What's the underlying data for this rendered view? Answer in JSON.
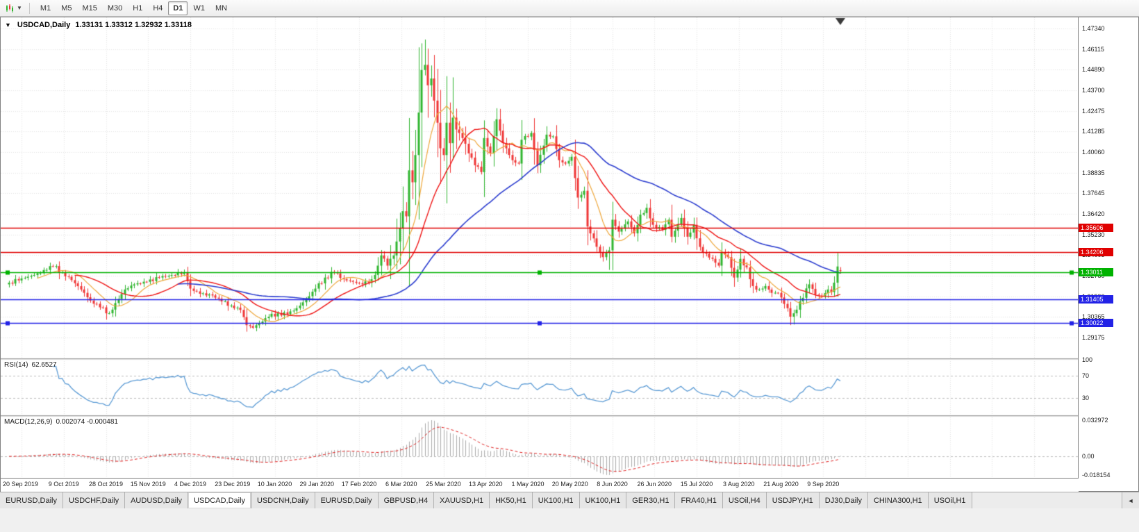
{
  "toolbar": {
    "dropdown_caret": "▼",
    "timeframes": [
      {
        "label": "M1",
        "active": false
      },
      {
        "label": "M5",
        "active": false
      },
      {
        "label": "M15",
        "active": false
      },
      {
        "label": "M30",
        "active": false
      },
      {
        "label": "H1",
        "active": false
      },
      {
        "label": "H4",
        "active": false
      },
      {
        "label": "D1",
        "active": true
      },
      {
        "label": "W1",
        "active": false
      },
      {
        "label": "MN",
        "active": false
      }
    ]
  },
  "chart_header": {
    "collapse_icon": "▼",
    "title": "USDCAD,Daily",
    "ohlc": "1.33131 1.33312 1.32932 1.33118"
  },
  "panels": {
    "rsi": {
      "name": "RSI(14)",
      "value": "62.6527"
    },
    "macd": {
      "name": "MACD(12,26,9)",
      "values": "0.002074 -0.000481"
    }
  },
  "chart_data": {
    "type": "candlestick",
    "symbol": "USDCAD",
    "period": "Daily",
    "current_bar": {
      "open": 1.33131,
      "high": 1.33312,
      "low": 1.32932,
      "close": 1.33118
    },
    "y_labels": [
      "1.47340",
      "1.46115",
      "1.44890",
      "1.43700",
      "1.42475",
      "1.41285",
      "1.40060",
      "1.38835",
      "1.37645",
      "1.36420",
      "1.35230",
      "1.34005",
      "1.32780",
      "1.31590",
      "1.30365",
      "1.29175"
    ],
    "ylim": [
      1.29175,
      1.4734
    ],
    "x_labels": [
      "20 Sep 2019",
      "9 Oct 2019",
      "28 Oct 2019",
      "15 Nov 2019",
      "4 Dec 2019",
      "23 Dec 2019",
      "10 Jan 2020",
      "29 Jan 2020",
      "17 Feb 2020",
      "6 Mar 2020",
      "25 Mar 2020",
      "13 Apr 2020",
      "1 May 2020",
      "20 May 2020",
      "8 Jun 2020",
      "26 Jun 2020",
      "15 Jul 2020",
      "3 Aug 2020",
      "21 Aug 2020",
      "9 Sep 2020"
    ],
    "bars": 267,
    "up_color": "#2FB52F",
    "down_color": "#F03535",
    "close_anchors": [
      [
        0,
        1.324
      ],
      [
        4,
        1.3265
      ],
      [
        8,
        1.3285
      ],
      [
        12,
        1.3315
      ],
      [
        14,
        1.3335
      ],
      [
        17,
        1.33
      ],
      [
        20,
        1.3255
      ],
      [
        23,
        1.32
      ],
      [
        26,
        1.3135
      ],
      [
        29,
        1.3095
      ],
      [
        32,
        1.306
      ],
      [
        34,
        1.312
      ],
      [
        37,
        1.32
      ],
      [
        40,
        1.323
      ],
      [
        44,
        1.3245
      ],
      [
        48,
        1.327
      ],
      [
        52,
        1.3285
      ],
      [
        56,
        1.33
      ],
      [
        58,
        1.3205
      ],
      [
        61,
        1.3175
      ],
      [
        65,
        1.3165
      ],
      [
        68,
        1.313
      ],
      [
        71,
        1.3105
      ],
      [
        74,
        1.308
      ],
      [
        76,
        1.299
      ],
      [
        78,
        1.2975
      ],
      [
        80,
        1.3
      ],
      [
        83,
        1.304
      ],
      [
        86,
        1.306
      ],
      [
        89,
        1.3055
      ],
      [
        92,
        1.309
      ],
      [
        95,
        1.314
      ],
      [
        98,
        1.3205
      ],
      [
        101,
        1.327
      ],
      [
        104,
        1.33
      ],
      [
        107,
        1.326
      ],
      [
        110,
        1.3245
      ],
      [
        113,
        1.323
      ],
      [
        116,
        1.326
      ],
      [
        118,
        1.334
      ],
      [
        119,
        1.34
      ],
      [
        121,
        1.334
      ],
      [
        123,
        1.34
      ],
      [
        125,
        1.356
      ],
      [
        126,
        1.366
      ],
      [
        127,
        1.363
      ],
      [
        128,
        1.39
      ],
      [
        129,
        1.383
      ],
      [
        130,
        1.399
      ],
      [
        131,
        1.424
      ],
      [
        132,
        1.449
      ],
      [
        133,
        1.452
      ],
      [
        134,
        1.44
      ],
      [
        135,
        1.444
      ],
      [
        136,
        1.431
      ],
      [
        137,
        1.418
      ],
      [
        138,
        1.403
      ],
      [
        139,
        1.399
      ],
      [
        140,
        1.418
      ],
      [
        141,
        1.406
      ],
      [
        142,
        1.421
      ],
      [
        143,
        1.414
      ],
      [
        145,
        1.409
      ],
      [
        147,
        1.4
      ],
      [
        149,
        1.393
      ],
      [
        151,
        1.389
      ],
      [
        152,
        1.409
      ],
      [
        154,
        1.4
      ],
      [
        156,
        1.42
      ],
      [
        158,
        1.406
      ],
      [
        161,
        1.396
      ],
      [
        163,
        1.394
      ],
      [
        164,
        1.408
      ],
      [
        167,
        1.412
      ],
      [
        169,
        1.393
      ],
      [
        172,
        1.411
      ],
      [
        174,
        1.41
      ],
      [
        176,
        1.396
      ],
      [
        178,
        1.394
      ],
      [
        180,
        1.398
      ],
      [
        182,
        1.374
      ],
      [
        184,
        1.378
      ],
      [
        185,
        1.357
      ],
      [
        187,
        1.35
      ],
      [
        189,
        1.342
      ],
      [
        190,
        1.339
      ],
      [
        192,
        1.343
      ],
      [
        193,
        1.361
      ],
      [
        195,
        1.354
      ],
      [
        198,
        1.36
      ],
      [
        200,
        1.353
      ],
      [
        202,
        1.364
      ],
      [
        204,
        1.368
      ],
      [
        206,
        1.358
      ],
      [
        209,
        1.355
      ],
      [
        211,
        1.361
      ],
      [
        212,
        1.351
      ],
      [
        215,
        1.362
      ],
      [
        217,
        1.351
      ],
      [
        219,
        1.358
      ],
      [
        221,
        1.345
      ],
      [
        223,
        1.341
      ],
      [
        225,
        1.338
      ],
      [
        227,
        1.334
      ],
      [
        228,
        1.342
      ],
      [
        230,
        1.339
      ],
      [
        232,
        1.327
      ],
      [
        234,
        1.338
      ],
      [
        236,
        1.333
      ],
      [
        238,
        1.322
      ],
      [
        240,
        1.32
      ],
      [
        242,
        1.322
      ],
      [
        244,
        1.318
      ],
      [
        246,
        1.318
      ],
      [
        249,
        1.309
      ],
      [
        250,
        1.304
      ],
      [
        251,
        1.306
      ],
      [
        253,
        1.313
      ],
      [
        256,
        1.323
      ],
      [
        258,
        1.317
      ],
      [
        260,
        1.316
      ],
      [
        262,
        1.32
      ],
      [
        263,
        1.3185
      ],
      [
        264,
        1.324
      ],
      [
        265,
        1.3335
      ],
      [
        266,
        1.33118
      ]
    ],
    "bar_overrides": {
      "76": {
        "low": 1.2952
      },
      "133": {
        "high": 1.4669
      },
      "156": {
        "high": 1.4265
      },
      "192": {
        "low": 1.3315
      },
      "251": {
        "low": 1.2994
      },
      "266": {
        "open": 1.33131,
        "high": 1.33312,
        "low": 1.32932,
        "close": 1.33118
      }
    },
    "moving_averages": [
      {
        "period": 10,
        "color": "#EFA83C",
        "width": 1.2
      },
      {
        "period": 22,
        "color": "#F01515",
        "width": 1.4
      },
      {
        "period": 55,
        "color": "#2E3FD0",
        "width": 1.6
      }
    ],
    "horizontal_lines": [
      {
        "price": 1.35606,
        "tag": "1.35606",
        "color": "#E00000",
        "handles": false
      },
      {
        "price": 1.34206,
        "tag": "1.34206",
        "color": "#E00000",
        "handles": false
      },
      {
        "price": 1.33011,
        "tag": "1.33011",
        "color": "#00B200",
        "handles": true
      },
      {
        "price": 1.31405,
        "tag": "1.31405",
        "color": "#2222E6",
        "handles": false
      },
      {
        "price": 1.30022,
        "tag": "1.30022",
        "color": "#2222E6",
        "handles": true
      }
    ],
    "rsi": {
      "period": 14,
      "value": 62.6527,
      "levels": [
        "100",
        "70",
        "30"
      ],
      "level_values": [
        100,
        70,
        30
      ],
      "color": "#5B9BD5"
    },
    "macd": {
      "fast": 12,
      "slow": 26,
      "signal": 9,
      "main_value": 0.002074,
      "signal_value": -0.000481,
      "y_labels": [
        "0.032972",
        "0.00",
        "-0.018154"
      ],
      "histogram_color": "#ABABAB",
      "signal_color": "#E02020"
    }
  },
  "tabs": {
    "scroll_left": "◄",
    "items": [
      {
        "label": "EURUSD,Daily",
        "active": false
      },
      {
        "label": "USDCHF,Daily",
        "active": false
      },
      {
        "label": "AUDUSD,Daily",
        "active": false
      },
      {
        "label": "USDCAD,Daily",
        "active": true
      },
      {
        "label": "USDCNH,Daily",
        "active": false
      },
      {
        "label": "EURUSD,Daily",
        "active": false
      },
      {
        "label": "GBPUSD,H4",
        "active": false
      },
      {
        "label": "XAUUSD,H1",
        "active": false
      },
      {
        "label": "HK50,H1",
        "active": false
      },
      {
        "label": "UK100,H1",
        "active": false
      },
      {
        "label": "UK100,H1",
        "active": false
      },
      {
        "label": "GER30,H1",
        "active": false
      },
      {
        "label": "FRA40,H1",
        "active": false
      },
      {
        "label": "USOil,H4",
        "active": false
      },
      {
        "label": "USDJPY,H1",
        "active": false
      },
      {
        "label": "DJ30,Daily",
        "active": false
      },
      {
        "label": "CHINA300,H1",
        "active": false
      },
      {
        "label": "USOil,H1",
        "active": false
      }
    ]
  }
}
